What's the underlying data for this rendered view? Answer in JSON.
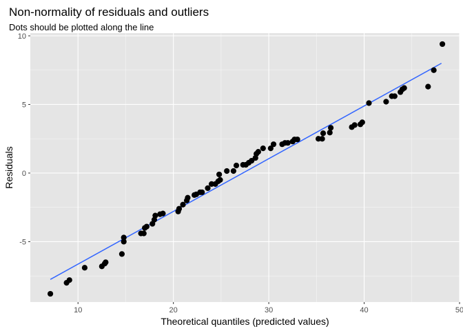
{
  "chart_data": {
    "type": "scatter",
    "title": "Non-normality of residuals and outliers",
    "subtitle": "Dots should be plotted along the line",
    "xlabel": "Theoretical quantiles (predicted values)",
    "ylabel": "Residuals",
    "xlim": [
      5.0,
      50.0
    ],
    "ylim": [
      -9.4,
      10.2
    ],
    "x_ticks": [
      10,
      20,
      30,
      40,
      50
    ],
    "x_tick_labels": [
      "10",
      "20",
      "30",
      "40",
      "50"
    ],
    "y_ticks": [
      -5,
      0,
      5,
      10
    ],
    "y_tick_labels": [
      "-5",
      "0",
      "5",
      "10"
    ],
    "grid": true,
    "legend": "none",
    "colors": {
      "panel": "#e5e5e5",
      "grid": "#ffffff",
      "points": "#000000",
      "line": "#3366ff"
    },
    "reference_line": {
      "x": [
        7.1,
        48.1
      ],
      "y": [
        -7.75,
        8.0
      ]
    },
    "points": [
      {
        "x": 7.1,
        "y": -8.8
      },
      {
        "x": 8.8,
        "y": -8.0
      },
      {
        "x": 9.1,
        "y": -7.8
      },
      {
        "x": 10.7,
        "y": -6.9
      },
      {
        "x": 12.5,
        "y": -6.8
      },
      {
        "x": 12.8,
        "y": -6.6
      },
      {
        "x": 12.9,
        "y": -6.5
      },
      {
        "x": 14.6,
        "y": -5.9
      },
      {
        "x": 14.8,
        "y": -5.0
      },
      {
        "x": 14.8,
        "y": -4.7
      },
      {
        "x": 16.6,
        "y": -4.4
      },
      {
        "x": 16.9,
        "y": -4.4
      },
      {
        "x": 17.0,
        "y": -4.0
      },
      {
        "x": 17.2,
        "y": -3.9
      },
      {
        "x": 17.8,
        "y": -3.7
      },
      {
        "x": 18.0,
        "y": -3.4
      },
      {
        "x": 18.1,
        "y": -3.1
      },
      {
        "x": 18.6,
        "y": -3.0
      },
      {
        "x": 18.9,
        "y": -2.95
      },
      {
        "x": 20.5,
        "y": -2.8
      },
      {
        "x": 20.6,
        "y": -2.6
      },
      {
        "x": 21.0,
        "y": -2.3
      },
      {
        "x": 21.4,
        "y": -2.0
      },
      {
        "x": 21.5,
        "y": -1.8
      },
      {
        "x": 22.2,
        "y": -1.6
      },
      {
        "x": 22.4,
        "y": -1.55
      },
      {
        "x": 22.8,
        "y": -1.4
      },
      {
        "x": 23.0,
        "y": -1.4
      },
      {
        "x": 23.6,
        "y": -1.1
      },
      {
        "x": 24.0,
        "y": -0.8
      },
      {
        "x": 24.4,
        "y": -0.8
      },
      {
        "x": 24.7,
        "y": -0.6
      },
      {
        "x": 24.9,
        "y": -0.5
      },
      {
        "x": 24.8,
        "y": -0.1
      },
      {
        "x": 25.6,
        "y": 0.15
      },
      {
        "x": 26.3,
        "y": 0.15
      },
      {
        "x": 26.6,
        "y": 0.55
      },
      {
        "x": 27.3,
        "y": 0.6
      },
      {
        "x": 27.6,
        "y": 0.6
      },
      {
        "x": 27.9,
        "y": 0.75
      },
      {
        "x": 28.2,
        "y": 0.9
      },
      {
        "x": 28.6,
        "y": 1.1
      },
      {
        "x": 28.7,
        "y": 1.4
      },
      {
        "x": 28.9,
        "y": 1.55
      },
      {
        "x": 29.4,
        "y": 1.8
      },
      {
        "x": 30.2,
        "y": 1.8
      },
      {
        "x": 30.5,
        "y": 2.1
      },
      {
        "x": 31.4,
        "y": 2.1
      },
      {
        "x": 31.7,
        "y": 2.2
      },
      {
        "x": 32.0,
        "y": 2.2
      },
      {
        "x": 32.5,
        "y": 2.3
      },
      {
        "x": 32.7,
        "y": 2.45
      },
      {
        "x": 33.0,
        "y": 2.45
      },
      {
        "x": 35.2,
        "y": 2.5
      },
      {
        "x": 35.6,
        "y": 2.5
      },
      {
        "x": 35.7,
        "y": 2.9
      },
      {
        "x": 36.4,
        "y": 2.95
      },
      {
        "x": 36.5,
        "y": 3.3
      },
      {
        "x": 38.7,
        "y": 3.35
      },
      {
        "x": 39.0,
        "y": 3.5
      },
      {
        "x": 39.6,
        "y": 3.55
      },
      {
        "x": 39.8,
        "y": 3.7
      },
      {
        "x": 40.5,
        "y": 5.1
      },
      {
        "x": 42.3,
        "y": 5.2
      },
      {
        "x": 42.9,
        "y": 5.6
      },
      {
        "x": 43.2,
        "y": 5.6
      },
      {
        "x": 43.8,
        "y": 5.9
      },
      {
        "x": 44.0,
        "y": 6.1
      },
      {
        "x": 44.2,
        "y": 6.2
      },
      {
        "x": 46.7,
        "y": 6.3
      },
      {
        "x": 47.3,
        "y": 7.5
      },
      {
        "x": 48.2,
        "y": 9.4
      }
    ]
  }
}
